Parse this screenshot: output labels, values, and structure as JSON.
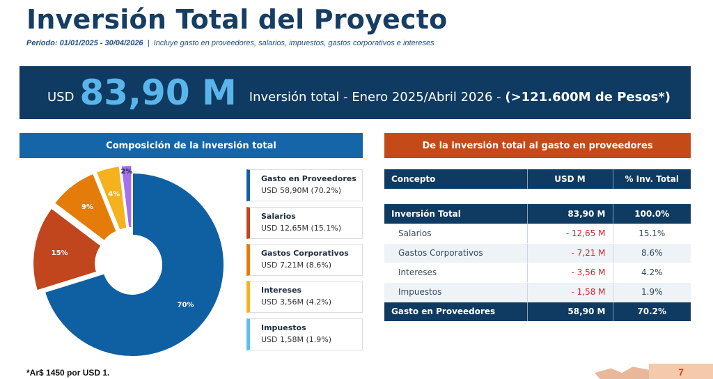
{
  "header": {
    "title": "Inversión Total del Proyecto",
    "period_label": "Período: 01/01/2025 - 30/04/2026",
    "separator": "|",
    "period_note": "Incluye gasto en proveedores, salarios, impuestos, gastos corporativos e intereses"
  },
  "banner": {
    "currency": "USD",
    "amount": "83,90 M",
    "description": "Inversión total - Enero 2025/Abril 2026 -",
    "pesos": "(>121.600M de Pesos*)"
  },
  "left_panel": {
    "title": "Composición de la inversión total"
  },
  "right_panel": {
    "title": "De la inversión total al gasto en proveedores"
  },
  "legend": [
    {
      "label": "Gasto en Proveedores",
      "value": "USD 58,90M  (70.2%)"
    },
    {
      "label": "Salarios",
      "value": "USD 12,65M  (15.1%)"
    },
    {
      "label": "Gastos Corporativos",
      "value": "USD 7,21M  (8.6%)"
    },
    {
      "label": "Intereses",
      "value": "USD 3,56M  (4.2%)"
    },
    {
      "label": "Impuestos",
      "value": "USD 1,58M  (1.9%)"
    }
  ],
  "table": {
    "headers": [
      "Concepto",
      "USD M",
      "% Inv. Total"
    ],
    "total_row": [
      "Inversión Total",
      "83,90 M",
      "100.0%"
    ],
    "rows": [
      [
        "Salarios",
        "- 12,65 M",
        "15.1%"
      ],
      [
        "Gastos Corporativos",
        "- 7,21 M",
        "8.6%"
      ],
      [
        "Intereses",
        "- 3,56 M",
        "4.2%"
      ],
      [
        "Impuestos",
        "- 1,58 M",
        "1.9%"
      ]
    ],
    "result_row": [
      "Gasto en Proveedores",
      "58,90 M",
      "70.2%"
    ]
  },
  "footnote": "*Ar$ 1450 por USD 1.",
  "page_number": "7",
  "colors": {
    "proveedores": "#0f5fa3",
    "salarios": "#c1461d",
    "corporativos": "#e57c0a",
    "intereses": "#f5b21e",
    "impuestos": "#a66ef0",
    "legend_impuestos": "#5bc0ea",
    "navy": "#0f3a61"
  },
  "chart_data": {
    "type": "pie",
    "donut": true,
    "categories": [
      "Gasto en Proveedores",
      "Salarios",
      "Gastos Corporativos",
      "Intereses",
      "Impuestos"
    ],
    "values": [
      70.2,
      15.1,
      8.6,
      4.2,
      1.9
    ],
    "usd_millions": [
      58.9,
      12.65,
      7.21,
      3.56,
      1.58
    ],
    "data_labels": [
      "70%",
      "15%",
      "9%",
      "4%",
      "2%"
    ],
    "exploded": [
      "Salarios",
      "Gastos Corporativos",
      "Intereses",
      "Impuestos"
    ]
  }
}
